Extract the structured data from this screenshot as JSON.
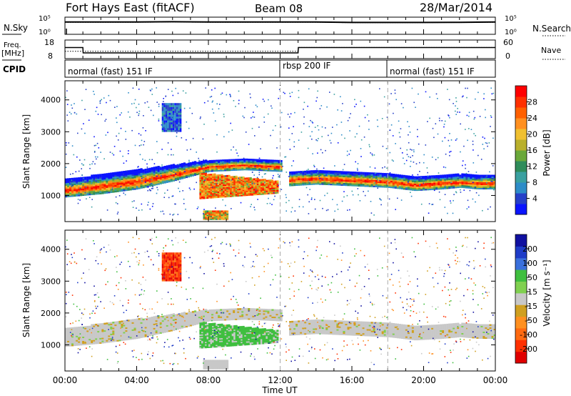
{
  "header": {
    "station": "Fort Hays East (fitACF)",
    "beam": "Beam 08",
    "date": "28/Mar/2014"
  },
  "left_labels": {
    "nsky": "N.Sky",
    "freq": "Freq.",
    "freq_unit": "[MHz]",
    "cpid": "CPID"
  },
  "right_labels": {
    "nsearch": "N.Search",
    "nave": "Nave"
  },
  "nsky_ticks": {
    "top": "10^5",
    "bottom": "10^0"
  },
  "freq_ticks": [
    "18",
    "8"
  ],
  "nave_ticks": [
    "60",
    "0"
  ],
  "xaxis": {
    "title": "Time UT",
    "ticks": [
      "00:00",
      "04:00",
      "08:00",
      "12:00",
      "16:00",
      "20:00",
      "00:00"
    ]
  },
  "power_colorbar": {
    "label": "Power [dB]",
    "ticks": [
      "28",
      "24",
      "20",
      "16",
      "12",
      "8",
      "4"
    ],
    "colors": [
      "#0a14ff",
      "#2640c8",
      "#2d8cc8",
      "#3aa0a0",
      "#2f8c5a",
      "#6aa83a",
      "#b9b02c",
      "#f0c030",
      "#ff9020",
      "#ff6000",
      "#ff3000",
      "#ff0000"
    ]
  },
  "velocity_colorbar": {
    "label": "Velocity [m s^-1]",
    "ticks": [
      "200",
      "100",
      "50",
      "15",
      "-15",
      "-50",
      "-100",
      "-200"
    ],
    "colors": [
      "#1010a0",
      "#1e3cc8",
      "#3a70dc",
      "#3fbf3f",
      "#80d050",
      "#c8c8c8",
      "#d0a020",
      "#ff9020",
      "#ff6a10",
      "#ff3000",
      "#e00000"
    ]
  },
  "chart_data": [
    {
      "type": "line",
      "panel": "noise",
      "title": "Fort Hays East (fitACF) Beam 08 28/Mar/2014",
      "ylabel_left": "N.Sky",
      "ylabel_right": "N.Search",
      "scale": "log",
      "ylim": [
        1,
        100000
      ],
      "x": [
        "00:00",
        "02:00",
        "04:00",
        "06:00",
        "08:00",
        "10:00",
        "12:00",
        "14:00",
        "16:00",
        "18:00",
        "20:00",
        "22:00",
        "24:00"
      ],
      "series": [
        {
          "name": "N.Sky",
          "values": [
            5000,
            5000,
            5000,
            6000,
            5000,
            5000,
            5000,
            5000,
            3500,
            3500,
            3500,
            4000,
            5000
          ]
        },
        {
          "name": "N.Search",
          "values": [
            4000,
            4000,
            4000,
            4500,
            4000,
            4000,
            4000,
            4000,
            3000,
            3000,
            3000,
            3500,
            4000
          ]
        }
      ]
    },
    {
      "type": "line",
      "panel": "frequency",
      "ylabel_left": "Freq. [MHz]",
      "ylabel_right": "Nave",
      "ylim_left": [
        8,
        18
      ],
      "ylim_right": [
        0,
        60
      ],
      "x": [
        "00:00",
        "01:00",
        "01:01",
        "13:00",
        "13:01",
        "24:00"
      ],
      "series": [
        {
          "name": "Freq.",
          "values": [
            13.8,
            13.8,
            10.8,
            10.8,
            13.8,
            13.8
          ]
        },
        {
          "name": "Nave",
          "values": [
            22,
            22,
            22,
            22,
            35,
            35
          ]
        }
      ]
    },
    {
      "type": "table",
      "panel": "CPID",
      "segments": [
        {
          "start": "00:00",
          "end": "12:00",
          "label": "normal (fast) 151 IF"
        },
        {
          "start": "12:00",
          "end": "18:00",
          "label": "rbsp 200 IF"
        },
        {
          "start": "18:00",
          "end": "24:00",
          "label": "normal (fast) 151 IF"
        }
      ]
    },
    {
      "type": "heatmap",
      "panel": "power",
      "ylabel": "Slant Range [km]",
      "xlabel": "Time UT",
      "yticks": [
        1000,
        2000,
        3000,
        4000
      ],
      "ylim": [
        180,
        4600
      ],
      "xlim": [
        0,
        24
      ],
      "colorbar": "Power [dB]",
      "bands": [
        {
          "name": "main echo band",
          "t": [
            0,
            2,
            4,
            6,
            8,
            10,
            12
          ],
          "range_low": [
            950,
            1050,
            1200,
            1450,
            1750,
            1800,
            1750
          ],
          "range_high": [
            1500,
            1650,
            1800,
            1950,
            2100,
            2150,
            2100
          ]
        },
        {
          "name": "post-12 band",
          "t": [
            12.5,
            14,
            16,
            18,
            19.5,
            21,
            22,
            23,
            24
          ],
          "range_low": [
            1300,
            1350,
            1300,
            1250,
            1150,
            1200,
            1250,
            1200,
            1200
          ],
          "range_high": [
            1750,
            1800,
            1750,
            1700,
            1600,
            1650,
            1650,
            1650,
            1650
          ]
        }
      ]
    },
    {
      "type": "heatmap",
      "panel": "velocity",
      "ylabel": "Slant Range [km]",
      "xlabel": "Time UT",
      "yticks": [
        1000,
        2000,
        3000,
        4000
      ],
      "ylim": [
        180,
        4600
      ],
      "xlim": [
        0,
        24
      ],
      "colorbar": "Velocity [m s^-1]"
    }
  ]
}
